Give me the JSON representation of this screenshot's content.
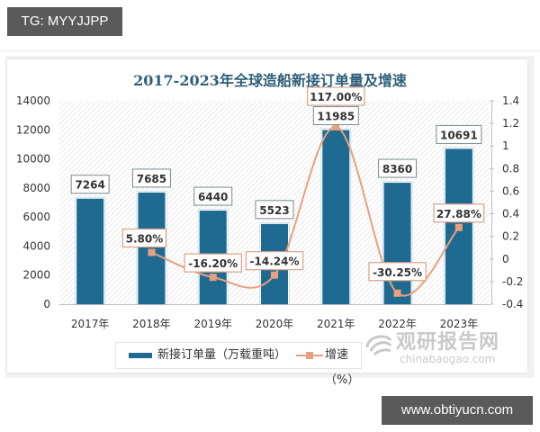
{
  "overlay": {
    "top_tag": "TG: MYYJJPP",
    "bottom_tag": "www.obtiyucn.com"
  },
  "watermark": {
    "cn": "观研报告网",
    "en": "chinabaogao.com"
  },
  "chart_data": {
    "type": "bar",
    "title": "2017-2023年全球造船新接订单量及增速",
    "categories": [
      "2017年",
      "2018年",
      "2019年",
      "2020年",
      "2021年",
      "2022年",
      "2023年"
    ],
    "series": [
      {
        "name": "新接订单量（万载重吨）",
        "type": "bar",
        "axis": "left",
        "color": "#1f6a91",
        "values": [
          7264,
          7685,
          6440,
          5523,
          11985,
          8360,
          10691
        ],
        "labels": [
          "7264",
          "7685",
          "6440",
          "5523",
          "11985",
          "8360",
          "10691"
        ]
      },
      {
        "name": "增速（%）",
        "type": "line",
        "axis": "right",
        "color": "#e8a07e",
        "values": [
          null,
          0.058,
          -0.162,
          -0.1424,
          1.17,
          -0.3025,
          0.2788
        ],
        "labels": [
          "",
          "5.80%",
          "-16.20%",
          "-14.24%",
          "117.00%",
          "-30.25%",
          "27.88%"
        ]
      }
    ],
    "left_axis": {
      "ylim": [
        0,
        14000
      ],
      "ticks": [
        "0",
        "2000",
        "4000",
        "6000",
        "8000",
        "10000",
        "12000",
        "14000"
      ]
    },
    "right_axis": {
      "ylim": [
        -0.4,
        1.4
      ],
      "ticks": [
        "-0.4",
        "-0.2",
        "0",
        "0.2",
        "0.4",
        "0.6",
        "0.8",
        "1",
        "1.2",
        "1.4"
      ]
    },
    "xlabel": "",
    "ylabel": "",
    "grid": false,
    "legend_position": "bottom",
    "legend": [
      "新接订单量（万载重吨）",
      "增速（%）"
    ]
  }
}
